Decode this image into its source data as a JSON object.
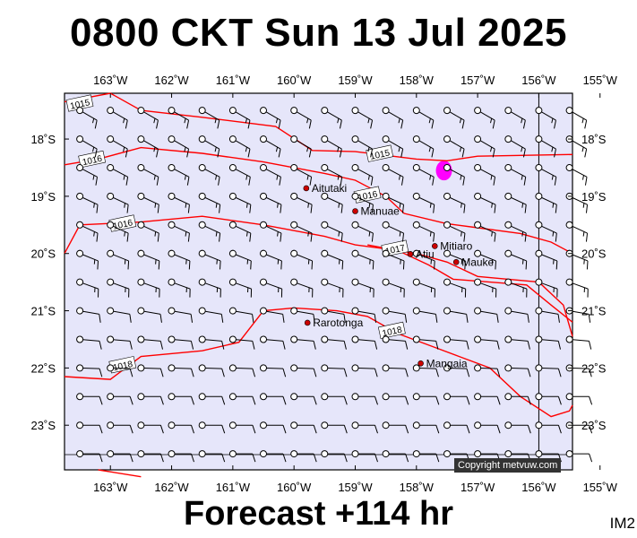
{
  "title": "0800 CKT Sun 13 Jul 2025",
  "footer": "Forecast +114 hr",
  "im_label": "IM2",
  "copyright": "Copyright metvuw.com",
  "colors": {
    "sea": "#e6e6fa",
    "isobar": "#ff0000",
    "island": "#cc0000",
    "rain": "#ff00ff",
    "barb": "#000000"
  },
  "axes": {
    "lon_labels": [
      "163˚W",
      "162˚W",
      "161˚W",
      "160˚W",
      "159˚W",
      "158˚W",
      "157˚W",
      "156˚W",
      "155˚W"
    ],
    "lon_values": [
      -163,
      -162,
      -161,
      -160,
      -159,
      -158,
      -157,
      -156,
      -155
    ],
    "lat_labels": [
      "18˚S",
      "19˚S",
      "20˚S",
      "21˚S",
      "22˚S",
      "23˚S"
    ],
    "lat_values": [
      -18,
      -19,
      -20,
      -21,
      -22,
      -23
    ],
    "lon_range": [
      -163.75,
      -155.45
    ],
    "lat_range": [
      -23.78,
      -17.2
    ]
  },
  "reference_meridian": -156,
  "islands": [
    {
      "name": "Aitutaki",
      "lon": -159.8,
      "lat": -18.86
    },
    {
      "name": "Manuae",
      "lon": -159.0,
      "lat": -19.26
    },
    {
      "name": "Mitiaro",
      "lon": -157.7,
      "lat": -19.87
    },
    {
      "name": "Atiu",
      "lon": -158.1,
      "lat": -20.01
    },
    {
      "name": "Mauke",
      "lon": -157.35,
      "lat": -20.15
    },
    {
      "name": "Rarotonga",
      "lon": -159.78,
      "lat": -21.21
    },
    {
      "name": "Mangaia",
      "lon": -157.93,
      "lat": -21.92
    }
  ],
  "isobars": [
    {
      "label": "1015",
      "label_at": [
        -163.5,
        -17.38
      ],
      "points": [
        [
          -163.75,
          -17.35
        ],
        [
          -163.0,
          -17.2
        ],
        [
          -162.5,
          -17.5
        ],
        [
          -161.5,
          -17.62
        ],
        [
          -160.3,
          -17.78
        ],
        [
          -159.7,
          -18.2
        ],
        [
          -159.0,
          -18.22
        ],
        [
          -158.0,
          -18.35
        ],
        [
          -157.5,
          -18.38
        ],
        [
          -157.0,
          -18.3
        ],
        [
          -156.0,
          -18.28
        ],
        [
          -155.45,
          -18.27
        ]
      ]
    },
    {
      "label": "1015",
      "label_at": [
        -158.6,
        -18.26
      ],
      "points": []
    },
    {
      "label": "1016",
      "label_at": [
        -163.3,
        -18.36
      ],
      "points": [
        [
          -163.75,
          -18.45
        ],
        [
          -163.2,
          -18.35
        ],
        [
          -162.5,
          -18.15
        ],
        [
          -161.5,
          -18.25
        ],
        [
          -160.5,
          -18.4
        ],
        [
          -159.5,
          -18.6
        ],
        [
          -159.0,
          -18.72
        ],
        [
          -158.5,
          -19.0
        ],
        [
          -158.2,
          -19.3
        ],
        [
          -157.5,
          -19.48
        ],
        [
          -157.0,
          -19.55
        ],
        [
          -156.3,
          -19.65
        ],
        [
          -155.8,
          -19.8
        ],
        [
          -155.45,
          -20.0
        ]
      ]
    },
    {
      "label": "1016",
      "label_at": [
        -158.8,
        -18.98
      ],
      "points": []
    },
    {
      "label": "1016",
      "label_at": [
        -162.8,
        -19.48
      ],
      "points": [
        [
          -163.75,
          -20.0
        ],
        [
          -163.5,
          -19.5
        ],
        [
          -162.5,
          -19.45
        ],
        [
          -161.5,
          -19.35
        ],
        [
          -160.5,
          -19.5
        ],
        [
          -159.5,
          -19.7
        ],
        [
          -159.0,
          -19.85
        ],
        [
          -158.5,
          -19.92
        ],
        [
          -158.0,
          -20.0
        ],
        [
          -157.5,
          -20.15
        ],
        [
          -157.0,
          -20.4
        ],
        [
          -156.5,
          -20.45
        ],
        [
          -156.0,
          -20.5
        ],
        [
          -155.6,
          -20.9
        ],
        [
          -155.45,
          -21.45
        ]
      ]
    },
    {
      "label": "1017",
      "label_at": [
        -158.35,
        -19.92
      ],
      "points": [
        [
          -158.8,
          -19.85
        ],
        [
          -158.3,
          -19.95
        ],
        [
          -157.8,
          -20.2
        ],
        [
          -157.4,
          -20.45
        ],
        [
          -156.8,
          -20.5
        ],
        [
          -156.2,
          -20.55
        ],
        [
          -155.8,
          -20.9
        ],
        [
          -155.45,
          -21.2
        ]
      ]
    },
    {
      "label": "1018",
      "label_at": [
        -158.4,
        -21.35
      ],
      "points": [
        [
          -163.75,
          -22.15
        ],
        [
          -163.0,
          -22.2
        ],
        [
          -162.5,
          -21.8
        ],
        [
          -161.5,
          -21.7
        ],
        [
          -160.9,
          -21.55
        ],
        [
          -160.5,
          -21.0
        ],
        [
          -160.0,
          -20.95
        ],
        [
          -159.3,
          -21.0
        ],
        [
          -158.8,
          -21.1
        ],
        [
          -158.3,
          -21.4
        ],
        [
          -157.8,
          -21.6
        ],
        [
          -157.3,
          -21.8
        ],
        [
          -156.8,
          -22.0
        ],
        [
          -156.3,
          -22.5
        ],
        [
          -155.8,
          -22.85
        ],
        [
          -155.5,
          -22.75
        ],
        [
          -155.45,
          -22.65
        ]
      ]
    },
    {
      "label": "1018",
      "label_at": [
        -162.8,
        -21.95
      ],
      "points": []
    },
    {
      "label": "",
      "label_at": [],
      "points": [
        [
          -163.2,
          -23.78
        ],
        [
          -162.5,
          -23.9
        ]
      ]
    }
  ],
  "rain_areas": [
    {
      "lon": -157.55,
      "lat": -18.55
    }
  ],
  "wind_grid": {
    "lons": [
      -163.5,
      -163.0,
      -162.5,
      -162.0,
      -161.5,
      -161.0,
      -160.5,
      -160.0,
      -159.5,
      -159.0,
      -158.5,
      -158.0,
      -157.5,
      -157.0,
      -156.5,
      -156.0,
      -155.5
    ],
    "lats": [
      -17.5,
      -18.0,
      -18.5,
      -19.0,
      -19.5,
      -20.0,
      -20.5,
      -21.0,
      -21.5,
      -22.0,
      -22.5,
      -23.0,
      -23.5
    ],
    "direction_rows_deg": [
      120,
      120,
      118,
      115,
      115,
      112,
      110,
      100,
      95,
      92,
      90,
      90,
      90
    ],
    "speed_rows_kt": [
      15,
      15,
      15,
      15,
      15,
      15,
      15,
      10,
      10,
      10,
      10,
      10,
      10
    ]
  }
}
